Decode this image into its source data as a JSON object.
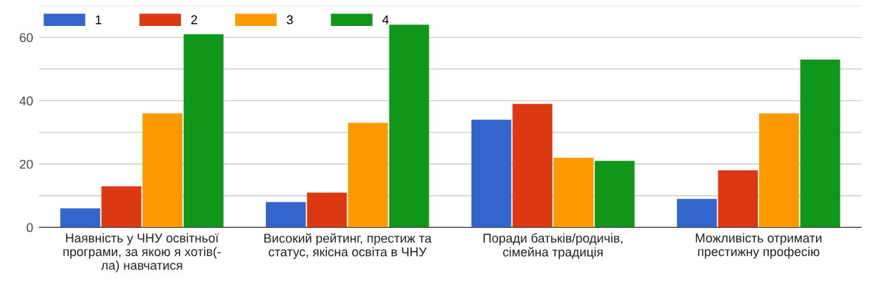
{
  "chart_data": {
    "type": "bar",
    "categories": [
      "Наявність у ЧНУ освітньої\nпрограми, за якою я хотів(-\nла) навчатися",
      "Високий рейтинг, престиж та\nстатус, якісна освіта в ЧНУ",
      "Поради батьків/родичів,\nсімейна традиція",
      "Можливість отримати\nпрестижну професію"
    ],
    "series": [
      {
        "name": "1",
        "color": "#3366cc",
        "values": [
          6,
          8,
          34,
          9
        ]
      },
      {
        "name": "2",
        "color": "#dc3912",
        "values": [
          13,
          11,
          39,
          18
        ]
      },
      {
        "name": "3",
        "color": "#ff9900",
        "values": [
          36,
          33,
          22,
          36
        ]
      },
      {
        "name": "4",
        "color": "#109618",
        "values": [
          61,
          64,
          21,
          53
        ]
      }
    ],
    "ylim": [
      0,
      70
    ],
    "yticks": [
      0,
      {
        "value": 10,
        "label": null
      },
      20,
      {
        "value": 30,
        "label": null
      },
      40,
      {
        "value": 50,
        "label": null
      },
      60,
      {
        "value": 70,
        "label": null
      }
    ],
    "grid": "y",
    "legend": "top left"
  }
}
